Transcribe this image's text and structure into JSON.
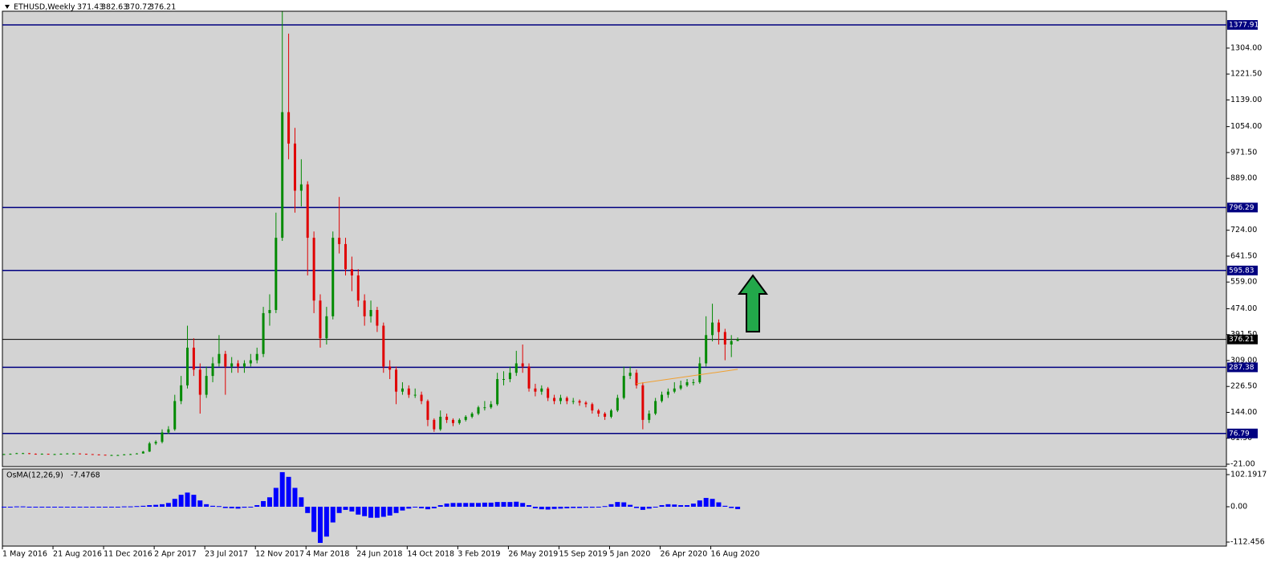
{
  "chart_data": {
    "type": "candlestick",
    "symbol": "ETHUSD,Weekly",
    "up_color": "#008a00",
    "down_color": "#e00000",
    "ylim": [
      -28.7,
      1421.4
    ],
    "yticks": [
      {
        "value": 1304,
        "label": "1304.00"
      },
      {
        "value": 1221.5,
        "label": "1221.50"
      },
      {
        "value": 1139,
        "label": "1139.00"
      },
      {
        "value": 1054,
        "label": "1054.00"
      },
      {
        "value": 971.5,
        "label": "971.50"
      },
      {
        "value": 889,
        "label": "889.00"
      },
      {
        "value": 724,
        "label": "724.00"
      },
      {
        "value": 641.5,
        "label": "641.50"
      },
      {
        "value": 559,
        "label": "559.00"
      },
      {
        "value": 474,
        "label": "474.00"
      },
      {
        "value": 391.5,
        "label": "391.50"
      },
      {
        "value": 309,
        "label": "309.00"
      },
      {
        "value": 226.5,
        "label": "226.50"
      },
      {
        "value": 144,
        "label": "144.00"
      },
      {
        "value": 61.5,
        "label": "61.50"
      },
      {
        "value": -21,
        "label": "-21.00"
      }
    ],
    "levels": [
      {
        "value": 1377.91,
        "color": "#000080"
      },
      {
        "value": 796.29,
        "color": "#000080"
      },
      {
        "value": 595.83,
        "color": "#000080"
      },
      {
        "value": 287.38,
        "color": "#000080"
      },
      {
        "value": 76.79,
        "color": "#000080"
      },
      {
        "value": 376.21,
        "color": "#000000"
      }
    ],
    "xticks": [
      {
        "value": 0,
        "label": "1 May 2016"
      },
      {
        "value": 8,
        "label": "21 Aug 2016"
      },
      {
        "value": 16,
        "label": "11 Dec 2016"
      },
      {
        "value": 24,
        "label": "2 Apr 2017"
      },
      {
        "value": 32,
        "label": "23 Jul 2017"
      },
      {
        "value": 40,
        "label": "12 Nov 2017"
      },
      {
        "value": 48,
        "label": "4 Mar 2018"
      },
      {
        "value": 56,
        "label": "24 Jun 2018"
      },
      {
        "value": 64,
        "label": "14 Oct 2018"
      },
      {
        "value": 72,
        "label": "3 Feb 2019"
      },
      {
        "value": 80,
        "label": "26 May 2019"
      },
      {
        "value": 88,
        "label": "15 Sep 2019"
      },
      {
        "value": 96,
        "label": "5 Jan 2020"
      },
      {
        "value": 104,
        "label": "26 Apr 2020"
      },
      {
        "value": 112,
        "label": "16 Aug 2020"
      }
    ],
    "trendline": {
      "color": "#f0a030",
      "points": [
        [
          100,
          235
        ],
        [
          116,
          281
        ]
      ]
    },
    "ohlc": [
      [
        10,
        12,
        10,
        11
      ],
      [
        11,
        13,
        11,
        12
      ],
      [
        12,
        15,
        12,
        14
      ],
      [
        14,
        15,
        13,
        14
      ],
      [
        14,
        14,
        11,
        12
      ],
      [
        12,
        13,
        10,
        11
      ],
      [
        11,
        13,
        11,
        12
      ],
      [
        12,
        12,
        10,
        11
      ],
      [
        11,
        12,
        10,
        11
      ],
      [
        11,
        13,
        11,
        12
      ],
      [
        12,
        14,
        12,
        13
      ],
      [
        13,
        14,
        12,
        13
      ],
      [
        13,
        13,
        11,
        12
      ],
      [
        12,
        12,
        10,
        11
      ],
      [
        11,
        11,
        9,
        10
      ],
      [
        10,
        10,
        8,
        9
      ],
      [
        9,
        9,
        7,
        8
      ],
      [
        8,
        9,
        7,
        8
      ],
      [
        8,
        9,
        7,
        8
      ],
      [
        8,
        11,
        8,
        10
      ],
      [
        10,
        12,
        10,
        11
      ],
      [
        11,
        14,
        11,
        13
      ],
      [
        13,
        21,
        13,
        19
      ],
      [
        19,
        50,
        18,
        45
      ],
      [
        45,
        55,
        40,
        50
      ],
      [
        50,
        90,
        45,
        80
      ],
      [
        80,
        100,
        75,
        90
      ],
      [
        90,
        200,
        85,
        180
      ],
      [
        180,
        260,
        170,
        230
      ],
      [
        230,
        420,
        220,
        350
      ],
      [
        350,
        380,
        260,
        280
      ],
      [
        280,
        300,
        140,
        200
      ],
      [
        200,
        290,
        190,
        260
      ],
      [
        260,
        320,
        240,
        300
      ],
      [
        300,
        390,
        290,
        330
      ],
      [
        330,
        340,
        200,
        290
      ],
      [
        290,
        320,
        270,
        300
      ],
      [
        300,
        310,
        270,
        290
      ],
      [
        290,
        310,
        270,
        300
      ],
      [
        300,
        330,
        290,
        310
      ],
      [
        310,
        350,
        300,
        330
      ],
      [
        330,
        480,
        320,
        460
      ],
      [
        460,
        520,
        420,
        470
      ],
      [
        470,
        780,
        460,
        700
      ],
      [
        700,
        1420,
        690,
        1100
      ],
      [
        1100,
        1350,
        950,
        1000
      ],
      [
        1000,
        1050,
        780,
        850
      ],
      [
        850,
        950,
        800,
        870
      ],
      [
        870,
        880,
        580,
        700
      ],
      [
        700,
        720,
        460,
        500
      ],
      [
        500,
        520,
        350,
        380
      ],
      [
        380,
        480,
        360,
        450
      ],
      [
        450,
        720,
        440,
        700
      ],
      [
        700,
        830,
        650,
        680
      ],
      [
        680,
        700,
        580,
        600
      ],
      [
        600,
        640,
        530,
        580
      ],
      [
        580,
        600,
        480,
        500
      ],
      [
        500,
        520,
        420,
        450
      ],
      [
        450,
        500,
        430,
        470
      ],
      [
        470,
        480,
        400,
        420
      ],
      [
        420,
        430,
        270,
        290
      ],
      [
        290,
        310,
        250,
        280
      ],
      [
        280,
        290,
        170,
        210
      ],
      [
        210,
        240,
        200,
        220
      ],
      [
        220,
        230,
        190,
        200
      ],
      [
        200,
        220,
        190,
        200
      ],
      [
        200,
        210,
        170,
        180
      ],
      [
        180,
        185,
        100,
        120
      ],
      [
        120,
        125,
        82,
        90
      ],
      [
        90,
        150,
        85,
        130
      ],
      [
        130,
        140,
        110,
        120
      ],
      [
        120,
        125,
        100,
        110
      ],
      [
        110,
        125,
        105,
        120
      ],
      [
        120,
        135,
        115,
        130
      ],
      [
        130,
        145,
        125,
        140
      ],
      [
        140,
        165,
        135,
        160
      ],
      [
        160,
        180,
        150,
        160
      ],
      [
        160,
        180,
        155,
        170
      ],
      [
        170,
        270,
        165,
        250
      ],
      [
        250,
        275,
        230,
        250
      ],
      [
        250,
        290,
        240,
        270
      ],
      [
        270,
        340,
        260,
        300
      ],
      [
        300,
        360,
        270,
        290
      ],
      [
        290,
        300,
        210,
        220
      ],
      [
        220,
        235,
        195,
        210
      ],
      [
        210,
        230,
        200,
        220
      ],
      [
        220,
        225,
        180,
        190
      ],
      [
        190,
        200,
        170,
        180
      ],
      [
        180,
        200,
        170,
        190
      ],
      [
        190,
        195,
        170,
        180
      ],
      [
        180,
        190,
        170,
        180
      ],
      [
        180,
        185,
        165,
        175
      ],
      [
        175,
        180,
        160,
        170
      ],
      [
        170,
        175,
        140,
        150
      ],
      [
        150,
        155,
        130,
        140
      ],
      [
        140,
        145,
        120,
        130
      ],
      [
        130,
        155,
        125,
        150
      ],
      [
        150,
        200,
        145,
        190
      ],
      [
        190,
        290,
        185,
        260
      ],
      [
        260,
        290,
        250,
        270
      ],
      [
        270,
        280,
        220,
        230
      ],
      [
        230,
        240,
        90,
        120
      ],
      [
        120,
        150,
        110,
        140
      ],
      [
        140,
        190,
        135,
        180
      ],
      [
        180,
        210,
        175,
        200
      ],
      [
        200,
        220,
        190,
        210
      ],
      [
        210,
        240,
        205,
        220
      ],
      [
        220,
        245,
        215,
        230
      ],
      [
        230,
        250,
        225,
        240
      ],
      [
        240,
        250,
        230,
        240
      ],
      [
        240,
        320,
        235,
        300
      ],
      [
        300,
        450,
        290,
        390
      ],
      [
        390,
        490,
        370,
        430
      ],
      [
        430,
        440,
        360,
        400
      ],
      [
        400,
        410,
        310,
        360
      ],
      [
        360,
        390,
        320,
        371
      ],
      [
        371.43,
        382.63,
        370.72,
        376.21
      ]
    ],
    "indicator": {
      "name": "OsMA(12,26,9)",
      "color": "#0000ff",
      "ylim": [
        -125.2,
        117.5
      ],
      "yticks": [
        102.1917,
        {
          "value": 0,
          "label": "0.00"
        },
        -112.456
      ],
      "values": [
        0,
        0,
        1,
        1,
        0,
        0,
        0,
        0,
        0,
        0,
        0,
        0,
        0,
        0,
        0,
        0,
        0,
        0,
        0,
        1,
        1,
        2,
        3,
        5,
        6,
        8,
        12,
        25,
        38,
        45,
        38,
        20,
        8,
        3,
        2,
        -4,
        -5,
        -6,
        -3,
        -2,
        5,
        18,
        30,
        60,
        110,
        95,
        60,
        30,
        -20,
        -80,
        -115,
        -95,
        -50,
        -20,
        -10,
        -15,
        -25,
        -30,
        -35,
        -35,
        -32,
        -28,
        -20,
        -12,
        -6,
        -2,
        -5,
        -8,
        -5,
        5,
        10,
        12,
        12,
        12,
        12,
        12,
        13,
        13,
        15,
        15,
        15,
        16,
        12,
        5,
        -5,
        -8,
        -9,
        -7,
        -6,
        -5,
        -4,
        -4,
        -3,
        -3,
        0,
        2,
        8,
        15,
        14,
        6,
        -4,
        -10,
        -6,
        0,
        5,
        8,
        7,
        5,
        5,
        10,
        20,
        28,
        25,
        14,
        3,
        -4,
        -7.4768
      ]
    }
  }
}
